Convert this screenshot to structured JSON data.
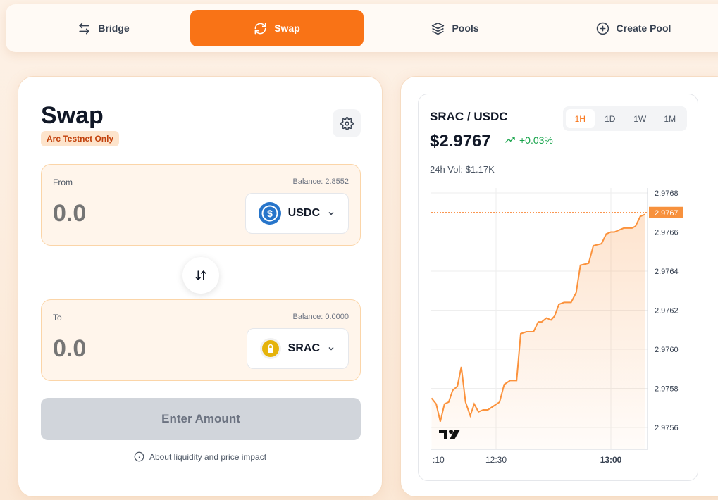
{
  "nav": {
    "tabs": [
      {
        "label": "Bridge",
        "icon": "arrows-left-right-icon"
      },
      {
        "label": "Swap",
        "icon": "refresh-icon",
        "active": true
      },
      {
        "label": "Pools",
        "icon": "layers-icon"
      },
      {
        "label": "Create Pool",
        "icon": "plus-circle-icon"
      }
    ]
  },
  "swap": {
    "title": "Swap",
    "badge": "Arc Testnet Only",
    "from": {
      "label": "From",
      "balance": "Balance: 2.8552",
      "placeholder": "0.0",
      "token": "USDC"
    },
    "to": {
      "label": "To",
      "balance": "Balance: 0.0000",
      "placeholder": "0.0",
      "token": "SRAC"
    },
    "submit": "Enter Amount",
    "about": "About liquidity and price impact"
  },
  "market": {
    "pair": "SRAC / USDC",
    "price": "$2.9767",
    "change": "+0.03%",
    "volume": "24h Vol: $1.17K",
    "ranges": [
      "1H",
      "1D",
      "1W",
      "1M"
    ],
    "active_range": "1H"
  },
  "colors": {
    "accent": "#f97316",
    "positive": "#16a34a",
    "line": "#fb923c"
  },
  "chart_data": {
    "type": "area",
    "x_tick_labels": [
      ":10",
      "12:30",
      "13:00"
    ],
    "y_tick_labels": [
      "2.9768",
      "2.9766",
      "2.9764",
      "2.9762",
      "2.9760",
      "2.9758",
      "2.9756"
    ],
    "ylim": [
      2.97552,
      2.97683
    ],
    "last_price_label": "2.9767",
    "last_price": 2.9767,
    "grid": true,
    "x": [
      "12:13:10",
      "12:14:23",
      "12:15:26",
      "12:16:32",
      "12:17:38",
      "12:18:40",
      "12:19:54",
      "12:20:56",
      "12:22:02",
      "12:23:16",
      "12:24:18",
      "12:25:25",
      "12:26:38",
      "12:27:52",
      "12:29:23",
      "12:30:55",
      "12:32:08",
      "12:33:40",
      "12:35:23",
      "12:36:26",
      "12:37:58",
      "12:39:48",
      "12:41:01",
      "12:41:56",
      "12:43:10",
      "12:44:23",
      "12:45:18",
      "12:46:25",
      "12:47:46",
      "12:49:36",
      "12:50:56",
      "12:52:02",
      "12:54:11",
      "12:55:25",
      "12:57:33",
      "12:58:47",
      "13:00:00",
      "13:00:55",
      "13:02:08",
      "13:03:22",
      "13:05:31",
      "13:06:26",
      "13:07:40",
      "13:08:53"
    ],
    "y": [
      2.97575,
      2.97572,
      2.97563,
      2.97572,
      2.97573,
      2.97579,
      2.97581,
      2.97591,
      2.97573,
      2.97566,
      2.97572,
      2.97568,
      2.97569,
      2.97569,
      2.97571,
      2.97573,
      2.97582,
      2.97584,
      2.97584,
      2.97608,
      2.97609,
      2.97609,
      2.97614,
      2.97614,
      2.97616,
      2.97615,
      2.97617,
      2.97623,
      2.97624,
      2.97624,
      2.97629,
      2.97643,
      2.97644,
      2.97653,
      2.97654,
      2.97659,
      2.9766,
      2.9766,
      2.97661,
      2.97662,
      2.97662,
      2.97663,
      2.97668,
      2.97669
    ]
  }
}
